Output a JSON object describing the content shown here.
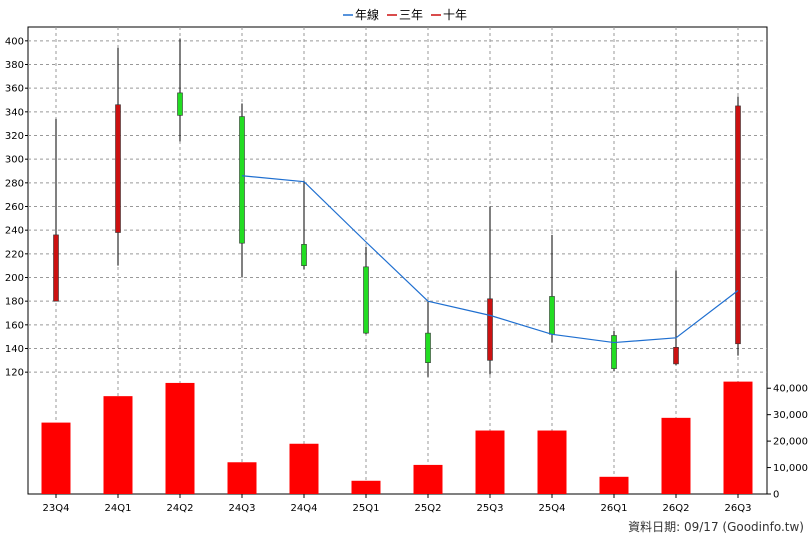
{
  "colors": {
    "up_candle": "#cc1111",
    "down_candle": "#22dd22",
    "volume_bar": "#ff0000",
    "line_year": "#1f6fd0",
    "line_three": "#cc1111",
    "line_ten": "#cc1111",
    "grid": "#999999",
    "axis": "#000000"
  },
  "legend": {
    "items": [
      {
        "label": "年線",
        "color": "#1f6fd0"
      },
      {
        "label": "三年",
        "color": "#cc1111"
      },
      {
        "label": "十年",
        "color": "#cc1111"
      }
    ]
  },
  "footer": {
    "text": "資料日期: 09/17  (Goodinfo.tw)"
  },
  "chart_data": {
    "type": "candlestick",
    "categories": [
      "23Q4",
      "24Q1",
      "24Q2",
      "24Q3",
      "24Q4",
      "25Q1",
      "25Q2",
      "25Q3",
      "25Q4",
      "26Q1",
      "26Q2",
      "26Q3"
    ],
    "price_axis": {
      "ylim": [
        110,
        410
      ],
      "ticks": [
        120,
        140,
        160,
        180,
        200,
        220,
        240,
        260,
        280,
        300,
        320,
        340,
        360,
        380,
        400
      ],
      "grid": true
    },
    "candles": [
      {
        "open": 180,
        "close": 236,
        "high": 334,
        "low": 180
      },
      {
        "open": 238,
        "close": 346,
        "high": 394,
        "low": 210
      },
      {
        "open": 356,
        "close": 337,
        "high": 402,
        "low": 315
      },
      {
        "open": 336,
        "close": 229,
        "high": 347,
        "low": 200
      },
      {
        "open": 228,
        "close": 210,
        "high": 282,
        "low": 207
      },
      {
        "open": 209,
        "close": 153,
        "high": 226,
        "low": 152
      },
      {
        "open": 153,
        "close": 128,
        "high": 180,
        "low": 116
      },
      {
        "open": 130,
        "close": 182,
        "high": 260,
        "low": 118
      },
      {
        "open": 184,
        "close": 152,
        "high": 236,
        "low": 145
      },
      {
        "open": 151,
        "close": 123,
        "high": 155,
        "low": 121
      },
      {
        "open": 127,
        "close": 141,
        "high": 206,
        "low": 126
      },
      {
        "open": 144,
        "close": 345,
        "high": 353,
        "low": 134
      }
    ],
    "series": [
      {
        "name": "年線",
        "values": [
          null,
          null,
          null,
          286,
          281,
          230,
          180,
          168,
          152,
          145,
          149,
          189
        ]
      }
    ],
    "volume": {
      "values": [
        27000,
        37000,
        42000,
        12000,
        19000,
        5000,
        11000,
        24000,
        24000,
        6500,
        28800,
        42500
      ],
      "ylim": [
        0,
        45000
      ],
      "ticks": [
        0,
        10000,
        20000,
        30000,
        40000
      ],
      "tick_labels": [
        "0",
        "10,000",
        "20,000",
        "30,000",
        "40,000"
      ]
    },
    "legend_position": "top-center"
  }
}
